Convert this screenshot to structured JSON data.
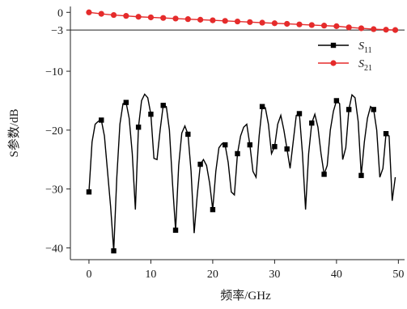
{
  "chart_data": {
    "type": "line",
    "xlabel": "频率/GHz",
    "ylabel": "S参数/dB",
    "xlim": [
      -3,
      51
    ],
    "ylim": [
      -42,
      1
    ],
    "x_ticks": [
      0,
      10,
      20,
      30,
      40,
      50
    ],
    "y_ticks": [
      0,
      -3,
      -10,
      -20,
      -30,
      -40
    ],
    "y_tick_labels": [
      "0",
      "−3",
      "−10",
      "−20",
      "−30",
      "−40"
    ],
    "reference_line_y": -3,
    "grid": false,
    "legend_position": "top-right",
    "series": [
      {
        "name": "S11",
        "legend_main": "S",
        "legend_sub": "11",
        "color": "#000000",
        "marker": "square",
        "x": [
          0,
          0.5,
          1,
          1.5,
          2,
          2.5,
          3,
          3.5,
          4,
          4.5,
          5,
          5.5,
          6,
          6.5,
          7,
          7.5,
          8,
          8.5,
          9,
          9.5,
          10,
          10.5,
          11,
          11.5,
          12,
          12.5,
          13,
          13.5,
          14,
          14.5,
          15,
          15.5,
          16,
          16.5,
          17,
          17.5,
          18,
          18.5,
          19,
          19.5,
          20,
          20.5,
          21,
          21.5,
          22,
          22.5,
          23,
          23.5,
          24,
          24.5,
          25,
          25.5,
          26,
          26.5,
          27,
          27.5,
          28,
          28.5,
          29,
          29.5,
          30,
          30.5,
          31,
          31.5,
          32,
          32.5,
          33,
          33.5,
          34,
          34.5,
          35,
          35.5,
          36,
          36.5,
          37,
          37.5,
          38,
          38.5,
          39,
          39.5,
          40,
          40.5,
          41,
          41.5,
          42,
          42.5,
          43,
          43.5,
          44,
          44.5,
          45,
          45.5,
          46,
          46.5,
          47,
          47.5,
          48,
          48.5,
          49,
          49.5
        ],
        "y": [
          -30.5,
          -22,
          -19,
          -18.5,
          -18.3,
          -21,
          -27,
          -33,
          -40.5,
          -28,
          -19,
          -15.5,
          -15.3,
          -18,
          -24,
          -33.5,
          -19.5,
          -15,
          -13.9,
          -14.5,
          -17.3,
          -24.8,
          -25,
          -20,
          -15.8,
          -16,
          -20,
          -29,
          -37,
          -26,
          -20.5,
          -19.3,
          -20.7,
          -27,
          -37.5,
          -31,
          -25.8,
          -25,
          -26,
          -29,
          -33.5,
          -27,
          -23,
          -22.3,
          -22.5,
          -25.5,
          -30.5,
          -31,
          -24,
          -21,
          -19.5,
          -19,
          -22.5,
          -27,
          -28,
          -21,
          -16,
          -16.2,
          -19,
          -24,
          -22.8,
          -19,
          -17.5,
          -20,
          -23.2,
          -26.5,
          -22,
          -17.5,
          -17.2,
          -24,
          -33.5,
          -24,
          -18.8,
          -17.3,
          -19.5,
          -24,
          -27.5,
          -26,
          -20,
          -16.8,
          -15,
          -15.5,
          -25,
          -23,
          -16.5,
          -14,
          -14.5,
          -18.5,
          -27.7,
          -22,
          -18,
          -16,
          -16.5,
          -20,
          -28,
          -26.5,
          -20.6,
          -21,
          -32,
          -28
        ]
      },
      {
        "name": "S21",
        "legend_main": "S",
        "legend_sub": "21",
        "color": "#e52b2b",
        "marker": "circle",
        "x": [
          0,
          2,
          4,
          6,
          8,
          10,
          12,
          14,
          16,
          18,
          20,
          22,
          24,
          26,
          28,
          30,
          32,
          34,
          36,
          38,
          40,
          42,
          44,
          46,
          48,
          49.5
        ],
        "y": [
          0,
          -0.25,
          -0.45,
          -0.6,
          -0.75,
          -0.85,
          -0.95,
          -1.05,
          -1.15,
          -1.25,
          -1.35,
          -1.45,
          -1.55,
          -1.65,
          -1.75,
          -1.85,
          -1.95,
          -2.05,
          -2.15,
          -2.25,
          -2.35,
          -2.55,
          -2.7,
          -2.85,
          -2.95,
          -3.0
        ]
      }
    ]
  }
}
